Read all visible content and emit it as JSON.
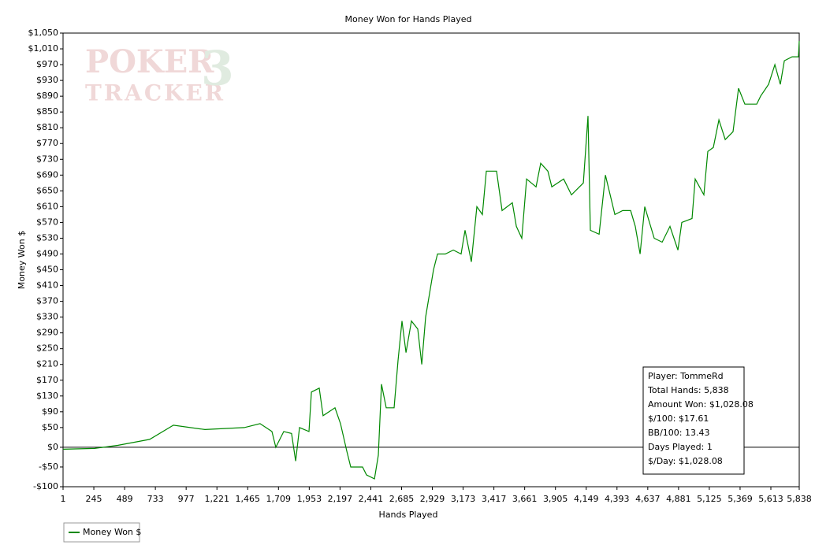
{
  "chart_data": {
    "type": "line",
    "title": "Money Won for Hands Played",
    "xlabel": "Hands Played",
    "ylabel": "Money Won $",
    "watermark": [
      "POKER",
      "TRACKER",
      "3"
    ],
    "xlim": [
      1,
      5838
    ],
    "ylim": [
      -100,
      1050
    ],
    "xticks": [
      1,
      245,
      489,
      733,
      977,
      {
        "value": 1221,
        "label": "1,221"
      },
      {
        "value": 1465,
        "label": "1,465"
      },
      {
        "value": 1709,
        "label": "1,709"
      },
      {
        "value": 1953,
        "label": "1,953"
      },
      {
        "value": 2197,
        "label": "2,197"
      },
      {
        "value": 2441,
        "label": "2,441"
      },
      {
        "value": 2685,
        "label": "2,685"
      },
      {
        "value": 2929,
        "label": "2,929"
      },
      {
        "value": 3173,
        "label": "3,173"
      },
      {
        "value": 3417,
        "label": "3,417"
      },
      {
        "value": 3661,
        "label": "3,661"
      },
      {
        "value": 3905,
        "label": "3,905"
      },
      {
        "value": 4149,
        "label": "4,149"
      },
      {
        "value": 4393,
        "label": "4,393"
      },
      {
        "value": 4637,
        "label": "4,637"
      },
      {
        "value": 4881,
        "label": "4,881"
      },
      {
        "value": 5125,
        "label": "5,125"
      },
      {
        "value": 5369,
        "label": "5,369"
      },
      {
        "value": 5613,
        "label": "5,613"
      },
      {
        "value": 5838,
        "label": "5,838"
      }
    ],
    "yticks": [
      {
        "value": -100,
        "label": "-$100"
      },
      {
        "value": -50,
        "label": "-$50"
      },
      {
        "value": 0,
        "label": "$0"
      },
      {
        "value": 50,
        "label": "$50"
      },
      {
        "value": 90,
        "label": "$90"
      },
      {
        "value": 130,
        "label": "$130"
      },
      {
        "value": 170,
        "label": "$170"
      },
      {
        "value": 210,
        "label": "$210"
      },
      {
        "value": 250,
        "label": "$250"
      },
      {
        "value": 290,
        "label": "$290"
      },
      {
        "value": 330,
        "label": "$330"
      },
      {
        "value": 370,
        "label": "$370"
      },
      {
        "value": 410,
        "label": "$410"
      },
      {
        "value": 450,
        "label": "$450"
      },
      {
        "value": 490,
        "label": "$490"
      },
      {
        "value": 530,
        "label": "$530"
      },
      {
        "value": 570,
        "label": "$570"
      },
      {
        "value": 610,
        "label": "$610"
      },
      {
        "value": 650,
        "label": "$650"
      },
      {
        "value": 690,
        "label": "$690"
      },
      {
        "value": 730,
        "label": "$730"
      },
      {
        "value": 770,
        "label": "$770"
      },
      {
        "value": 810,
        "label": "$810"
      },
      {
        "value": 850,
        "label": "$850"
      },
      {
        "value": 890,
        "label": "$890"
      },
      {
        "value": 930,
        "label": "$930"
      },
      {
        "value": 970,
        "label": "$970"
      },
      {
        "value": 1010,
        "label": "$1,010"
      },
      {
        "value": 1050,
        "label": "$1,050"
      }
    ],
    "zero_line": 0,
    "x": [
      1,
      251,
      438,
      688,
      876,
      1126,
      1438,
      1563,
      1657,
      1688,
      1751,
      1813,
      1845,
      1876,
      1951,
      1970,
      2032,
      2063,
      2157,
      2201,
      2251,
      2282,
      2376,
      2407,
      2470,
      2501,
      2526,
      2563,
      2626,
      2657,
      2688,
      2720,
      2763,
      2813,
      2845,
      2876,
      2938,
      2970,
      3032,
      3095,
      3157,
      3188,
      3238,
      3282,
      3326,
      3357,
      3438,
      3482,
      3563,
      3595,
      3638,
      3676,
      3751,
      3788,
      3845,
      3876,
      3970,
      4032,
      4126,
      4163,
      4182,
      4251,
      4301,
      4376,
      4438,
      4501,
      4538,
      4576,
      4613,
      4688,
      4751,
      4813,
      4876,
      4907,
      4988,
      5013,
      5082,
      5113,
      5157,
      5201,
      5251,
      5313,
      5357,
      5407,
      5501,
      5532,
      5595,
      5645,
      5688,
      5720,
      5782,
      5832,
      5838
    ],
    "series": [
      {
        "name": "Money Won $",
        "color": "#008800",
        "values": [
          -5,
          -3,
          5,
          20,
          56,
          45,
          50,
          60,
          40,
          0,
          40,
          35,
          -35,
          50,
          40,
          140,
          150,
          80,
          100,
          60,
          -10,
          -50,
          -50,
          -70,
          -80,
          -20,
          160,
          100,
          100,
          220,
          320,
          240,
          320,
          300,
          210,
          330,
          450,
          490,
          490,
          500,
          490,
          550,
          470,
          610,
          590,
          700,
          700,
          600,
          620,
          560,
          530,
          680,
          660,
          720,
          700,
          660,
          680,
          640,
          670,
          840,
          550,
          540,
          690,
          590,
          600,
          600,
          560,
          490,
          610,
          530,
          520,
          560,
          500,
          570,
          580,
          680,
          640,
          750,
          760,
          830,
          780,
          800,
          910,
          870,
          870,
          890,
          920,
          970,
          920,
          980,
          990,
          990,
          1030
        ]
      }
    ],
    "info": [
      "Player: TommeRd",
      "Total Hands: 5,838",
      "Amount Won: $1,028.08",
      "$/100: $17.61",
      "BB/100: 13.43",
      "Days Played: 1",
      "$/Day: $1,028.08"
    ]
  }
}
